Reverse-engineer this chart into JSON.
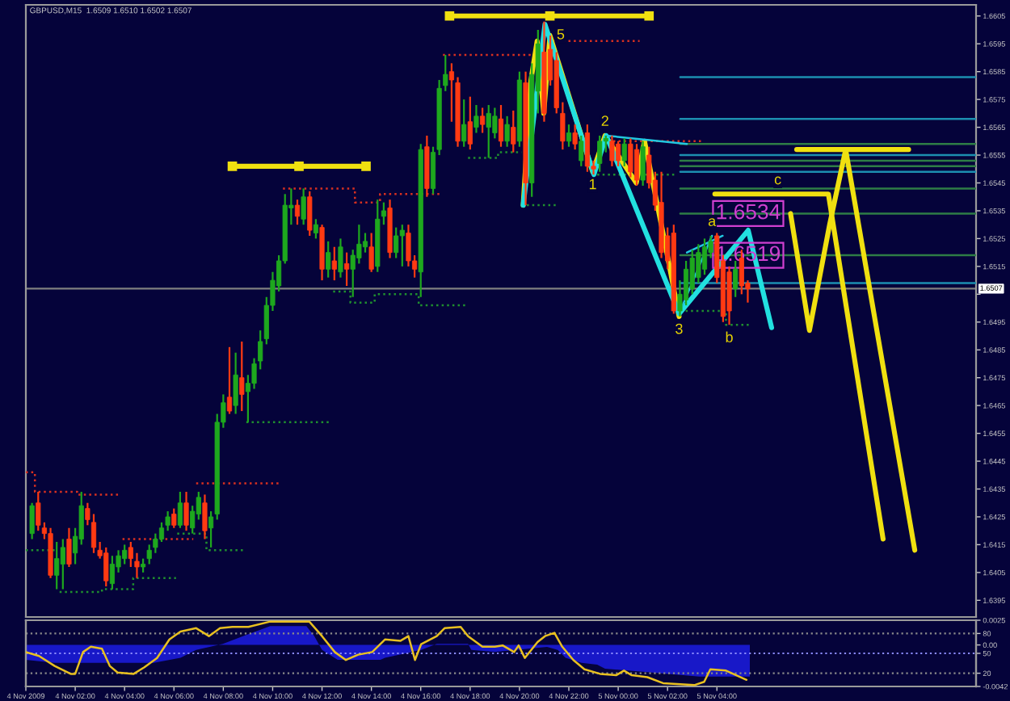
{
  "chart_data": [
    {
      "type": "candlestick",
      "title": "GBPUSD,M15  1.6509 1.6510 1.6502 1.6507",
      "x": [
        "2009-11-04T00:15",
        "2009-11-04T00:30",
        "2009-11-04T00:45",
        "2009-11-04T01:00",
        "2009-11-04T01:15",
        "2009-11-04T01:30",
        "2009-11-04T01:45",
        "2009-11-04T02:00",
        "2009-11-04T02:15",
        "2009-11-04T02:30",
        "2009-11-04T02:45",
        "2009-11-04T03:00",
        "2009-11-04T03:15",
        "2009-11-04T03:30",
        "2009-11-04T03:45",
        "2009-11-04T04:00",
        "2009-11-04T04:15",
        "2009-11-04T04:30",
        "2009-11-04T04:45",
        "2009-11-04T05:00",
        "2009-11-04T05:15",
        "2009-11-04T05:30",
        "2009-11-04T05:45",
        "2009-11-04T06:00",
        "2009-11-04T06:15",
        "2009-11-04T06:30",
        "2009-11-04T06:45",
        "2009-11-04T07:00",
        "2009-11-04T07:15",
        "2009-11-04T07:30",
        "2009-11-04T07:45",
        "2009-11-04T08:00",
        "2009-11-04T08:15",
        "2009-11-04T08:30",
        "2009-11-04T08:45",
        "2009-11-04T09:00",
        "2009-11-04T09:15",
        "2009-11-04T09:30",
        "2009-11-04T09:45",
        "2009-11-04T10:00",
        "2009-11-04T10:15",
        "2009-11-04T10:30",
        "2009-11-04T10:45",
        "2009-11-04T11:00",
        "2009-11-04T11:15",
        "2009-11-04T11:30",
        "2009-11-04T11:45",
        "2009-11-04T12:00",
        "2009-11-04T12:15",
        "2009-11-04T12:30",
        "2009-11-04T12:45",
        "2009-11-04T13:00",
        "2009-11-04T13:15",
        "2009-11-04T13:30",
        "2009-11-04T13:45",
        "2009-11-04T14:00",
        "2009-11-04T14:15",
        "2009-11-04T14:30",
        "2009-11-04T14:45",
        "2009-11-04T15:00",
        "2009-11-04T15:15",
        "2009-11-04T15:30",
        "2009-11-04T15:45",
        "2009-11-04T16:00",
        "2009-11-04T16:15",
        "2009-11-04T16:30",
        "2009-11-04T16:45",
        "2009-11-04T17:00",
        "2009-11-04T17:15",
        "2009-11-04T17:30",
        "2009-11-04T17:45",
        "2009-11-04T18:00",
        "2009-11-04T18:15",
        "2009-11-04T18:30",
        "2009-11-04T18:45",
        "2009-11-04T19:00",
        "2009-11-04T19:15",
        "2009-11-04T19:30",
        "2009-11-04T19:45",
        "2009-11-04T20:00",
        "2009-11-04T20:15",
        "2009-11-04T20:30",
        "2009-11-04T20:45",
        "2009-11-04T21:00",
        "2009-11-04T21:15",
        "2009-11-04T21:30",
        "2009-11-04T21:45",
        "2009-11-04T22:00",
        "2009-11-04T22:15",
        "2009-11-04T22:30",
        "2009-11-04T22:45",
        "2009-11-04T23:00",
        "2009-11-04T23:15",
        "2009-11-04T23:30",
        "2009-11-04T23:45",
        "2009-11-05T00:00",
        "2009-11-05T00:15",
        "2009-11-05T00:30",
        "2009-11-05T00:45",
        "2009-11-05T01:00",
        "2009-11-05T01:15",
        "2009-11-05T01:30",
        "2009-11-05T01:45",
        "2009-11-05T02:00",
        "2009-11-05T02:15",
        "2009-11-05T02:30",
        "2009-11-05T02:45",
        "2009-11-05T03:00",
        "2009-11-05T03:15",
        "2009-11-05T03:30",
        "2009-11-05T03:45",
        "2009-11-05T04:00",
        "2009-11-05T04:15",
        "2009-11-05T04:30",
        "2009-11-05T04:45",
        "2009-11-05T05:00",
        "2009-11-05T05:15"
      ],
      "ohlc": [
        [
          1.6419,
          1.643,
          1.6417,
          1.6429
        ],
        [
          1.643,
          1.6434,
          1.642,
          1.6422
        ],
        [
          1.6421,
          1.6423,
          1.6417,
          1.6419
        ],
        [
          1.6419,
          1.6421,
          1.6403,
          1.6404
        ],
        [
          1.6404,
          1.6416,
          1.6399,
          1.641
        ],
        [
          1.6408,
          1.6417,
          1.6399,
          1.6414
        ],
        [
          1.6417,
          1.6421,
          1.6407,
          1.6408
        ],
        [
          1.6412,
          1.6421,
          1.6408,
          1.6418
        ],
        [
          1.6417,
          1.6434,
          1.6415,
          1.6429
        ],
        [
          1.6428,
          1.643,
          1.6422,
          1.6424
        ],
        [
          1.6423,
          1.6426,
          1.6412,
          1.6414
        ],
        [
          1.6413,
          1.6416,
          1.641,
          1.6411
        ],
        [
          1.6412,
          1.6414,
          1.64,
          1.6402
        ],
        [
          1.6401,
          1.6411,
          1.6399,
          1.6408
        ],
        [
          1.6407,
          1.6413,
          1.6405,
          1.6411
        ],
        [
          1.641,
          1.6415,
          1.6408,
          1.6413
        ],
        [
          1.6414,
          1.6416,
          1.6407,
          1.641
        ],
        [
          1.6409,
          1.6412,
          1.6403,
          1.6407
        ],
        [
          1.6407,
          1.641,
          1.6405,
          1.6408
        ],
        [
          1.641,
          1.6415,
          1.6408,
          1.6413
        ],
        [
          1.6414,
          1.6419,
          1.6412,
          1.6417
        ],
        [
          1.6417,
          1.6423,
          1.6416,
          1.6421
        ],
        [
          1.6422,
          1.6427,
          1.642,
          1.6425
        ],
        [
          1.6426,
          1.6428,
          1.6421,
          1.6422
        ],
        [
          1.6422,
          1.6434,
          1.6421,
          1.643
        ],
        [
          1.643,
          1.6434,
          1.642,
          1.6422
        ],
        [
          1.6421,
          1.6429,
          1.6419,
          1.6427
        ],
        [
          1.6426,
          1.6434,
          1.6424,
          1.6432
        ],
        [
          1.643,
          1.6433,
          1.6417,
          1.642
        ],
        [
          1.6421,
          1.6427,
          1.6414,
          1.6425
        ],
        [
          1.6426,
          1.6462,
          1.6424,
          1.6459
        ],
        [
          1.6459,
          1.6469,
          1.6457,
          1.6466
        ],
        [
          1.6468,
          1.6486,
          1.6462,
          1.6463
        ],
        [
          1.6465,
          1.6484,
          1.6462,
          1.6476
        ],
        [
          1.6475,
          1.6488,
          1.6463,
          1.6469
        ],
        [
          1.647,
          1.6476,
          1.6459,
          1.6473
        ],
        [
          1.6473,
          1.6482,
          1.6471,
          1.648
        ],
        [
          1.6481,
          1.6492,
          1.6478,
          1.6488
        ],
        [
          1.6489,
          1.6504,
          1.6487,
          1.6501
        ],
        [
          1.6501,
          1.6513,
          1.6499,
          1.651
        ],
        [
          1.6508,
          1.6519,
          1.6506,
          1.6517
        ],
        [
          1.6517,
          1.6541,
          1.6516,
          1.6537
        ],
        [
          1.6536,
          1.6543,
          1.653,
          1.6537
        ],
        [
          1.6537,
          1.6539,
          1.653,
          1.6533
        ],
        [
          1.6532,
          1.6543,
          1.653,
          1.654
        ],
        [
          1.654,
          1.6542,
          1.6526,
          1.6528
        ],
        [
          1.6527,
          1.6532,
          1.6525,
          1.653
        ],
        [
          1.6529,
          1.653,
          1.651,
          1.6514
        ],
        [
          1.6514,
          1.6524,
          1.6511,
          1.652
        ],
        [
          1.6517,
          1.6522,
          1.651,
          1.6514
        ],
        [
          1.6513,
          1.6525,
          1.6511,
          1.6522
        ],
        [
          1.6516,
          1.652,
          1.6508,
          1.6514
        ],
        [
          1.6514,
          1.6521,
          1.6504,
          1.6519
        ],
        [
          1.6518,
          1.653,
          1.6516,
          1.6523
        ],
        [
          1.6522,
          1.6527,
          1.652,
          1.6524
        ],
        [
          1.6522,
          1.6527,
          1.6513,
          1.6514
        ],
        [
          1.6515,
          1.6539,
          1.6513,
          1.6532
        ],
        [
          1.6533,
          1.6538,
          1.653,
          1.6535
        ],
        [
          1.6536,
          1.6539,
          1.6518,
          1.652
        ],
        [
          1.652,
          1.6529,
          1.6518,
          1.6526
        ],
        [
          1.6526,
          1.653,
          1.6515,
          1.6528
        ],
        [
          1.6527,
          1.653,
          1.6515,
          1.6517
        ],
        [
          1.6517,
          1.6519,
          1.6511,
          1.6514
        ],
        [
          1.6513,
          1.6559,
          1.6504,
          1.6557
        ],
        [
          1.6558,
          1.6562,
          1.654,
          1.6543
        ],
        [
          1.6543,
          1.6558,
          1.6541,
          1.6556
        ],
        [
          1.6557,
          1.6582,
          1.6555,
          1.6579
        ],
        [
          1.658,
          1.6591,
          1.6578,
          1.6584
        ],
        [
          1.6585,
          1.6588,
          1.6567,
          1.6582
        ],
        [
          1.6581,
          1.6583,
          1.6558,
          1.656
        ],
        [
          1.656,
          1.6575,
          1.6558,
          1.6566
        ],
        [
          1.6567,
          1.6576,
          1.6557,
          1.6559
        ],
        [
          1.6565,
          1.6573,
          1.6563,
          1.6569
        ],
        [
          1.6569,
          1.6572,
          1.6563,
          1.6566
        ],
        [
          1.6565,
          1.6573,
          1.6554,
          1.657
        ],
        [
          1.6563,
          1.6572,
          1.6561,
          1.6569
        ],
        [
          1.6568,
          1.6573,
          1.6558,
          1.656
        ],
        [
          1.656,
          1.6569,
          1.6558,
          1.6566
        ],
        [
          1.6565,
          1.6571,
          1.6556,
          1.6559
        ],
        [
          1.656,
          1.6585,
          1.6558,
          1.6582
        ],
        [
          1.6581,
          1.6585,
          1.6537,
          1.6545
        ],
        [
          1.6545,
          1.6588,
          1.654,
          1.6584
        ],
        [
          1.6578,
          1.66,
          1.657,
          1.6595
        ],
        [
          1.6592,
          1.6603,
          1.6567,
          1.657
        ],
        [
          1.6593,
          1.6598,
          1.658,
          1.6582
        ],
        [
          1.6589,
          1.6592,
          1.657,
          1.6572
        ],
        [
          1.657,
          1.6574,
          1.6557,
          1.656
        ],
        [
          1.656,
          1.6566,
          1.6558,
          1.6563
        ],
        [
          1.6563,
          1.6566,
          1.6557,
          1.6559
        ],
        [
          1.6553,
          1.6562,
          1.6551,
          1.656
        ],
        [
          1.6563,
          1.6566,
          1.6549,
          1.6551
        ],
        [
          1.6551,
          1.6553,
          1.6548,
          1.655
        ],
        [
          1.6552,
          1.6562,
          1.6549,
          1.656
        ],
        [
          1.656,
          1.6562,
          1.6556,
          1.6561
        ],
        [
          1.656,
          1.6562,
          1.6551,
          1.6553
        ],
        [
          1.6559,
          1.656,
          1.6551,
          1.6553
        ],
        [
          1.6553,
          1.6561,
          1.6551,
          1.6559
        ],
        [
          1.6559,
          1.6561,
          1.6547,
          1.6549
        ],
        [
          1.6557,
          1.6559,
          1.6544,
          1.6546
        ],
        [
          1.6546,
          1.656,
          1.6544,
          1.6558
        ],
        [
          1.6555,
          1.6558,
          1.6543,
          1.6545
        ],
        [
          1.6546,
          1.6549,
          1.6535,
          1.6537
        ],
        [
          1.6538,
          1.6549,
          1.6518,
          1.652
        ],
        [
          1.6526,
          1.6529,
          1.6514,
          1.6517
        ],
        [
          1.6527,
          1.653,
          1.6498,
          1.6499
        ],
        [
          1.6499,
          1.651,
          1.6497,
          1.6505
        ],
        [
          1.6503,
          1.6517,
          1.6501,
          1.6514
        ],
        [
          1.6507,
          1.6521,
          1.6505,
          1.6518
        ],
        [
          1.6511,
          1.6523,
          1.6509,
          1.652
        ],
        [
          1.6514,
          1.6525,
          1.6512,
          1.6522
        ],
        [
          1.652,
          1.6526,
          1.6518,
          1.6524
        ],
        [
          1.6526,
          1.6527,
          1.6509,
          1.6511
        ],
        [
          1.6517,
          1.6519,
          1.6495,
          1.6497
        ],
        [
          1.6513,
          1.6515,
          1.6494,
          1.6499
        ],
        [
          1.6507,
          1.6517,
          1.6504,
          1.6514
        ],
        [
          1.6518,
          1.6521,
          1.6505,
          1.6508
        ],
        [
          1.6509,
          1.651,
          1.6502,
          1.6507
        ]
      ],
      "colors": [
        "#1ea81e",
        "#ff3a12",
        "#ff3a12",
        "#ff3a12",
        "#1ea81e",
        "#1ea81e",
        "#ff3a12",
        "#1ea81e",
        "#1ea81e",
        "#ff3a12",
        "#ff3a12",
        "#ff3a12",
        "#ff3a12",
        "#1ea81e",
        "#1ea81e",
        "#1ea81e",
        "#ff3a12",
        "#ff3a12",
        "#1ea81e",
        "#1ea81e",
        "#1ea81e",
        "#1ea81e",
        "#1ea81e",
        "#ff3a12",
        "#1ea81e",
        "#ff3a12",
        "#1ea81e",
        "#1ea81e",
        "#ff3a12",
        "#1ea81e",
        "#1ea81e",
        "#1ea81e",
        "#ff3a12",
        "#1ea81e",
        "#ff3a12",
        "#1ea81e",
        "#1ea81e",
        "#1ea81e",
        "#1ea81e",
        "#1ea81e",
        "#1ea81e",
        "#1ea81e",
        "#1ea81e",
        "#ff3a12",
        "#1ea81e",
        "#ff3a12",
        "#1ea81e",
        "#ff3a12",
        "#1ea81e",
        "#ff3a12",
        "#1ea81e",
        "#ff3a12",
        "#1ea81e",
        "#1ea81e",
        "#1ea81e",
        "#ff3a12",
        "#1ea81e",
        "#1ea81e",
        "#ff3a12",
        "#1ea81e",
        "#1ea81e",
        "#ff3a12",
        "#ff3a12",
        "#1ea81e",
        "#ff3a12",
        "#1ea81e",
        "#1ea81e",
        "#1ea81e",
        "#ff3a12",
        "#ff3a12",
        "#1ea81e",
        "#ff3a12",
        "#1ea81e",
        "#ff3a12",
        "#1ea81e",
        "#1ea81e",
        "#ff3a12",
        "#1ea81e",
        "#ff3a12",
        "#1ea81e",
        "#ff3a12",
        "#1ea81e",
        "#1ea81e",
        "#ff3a12",
        "#ff3a12",
        "#ff3a12",
        "#ff3a12",
        "#1ea81e",
        "#ff3a12",
        "#1ea81e",
        "#ff3a12",
        "#ff3a12",
        "#1ea81e",
        "#1ea81e",
        "#ff3a12",
        "#ff3a12",
        "#1ea81e",
        "#ff3a12",
        "#ff3a12",
        "#1ea81e",
        "#ff3a12",
        "#ff3a12",
        "#ff3a12",
        "#ff3a12",
        "#ff3a12",
        "#1ea81e",
        "#1ea81e",
        "#1ea81e",
        "#1ea81e",
        "#1ea81e",
        "#1ea81e",
        "#ff3a12",
        "#ff3a12",
        "#ff3a12",
        "#1ea81e",
        "#ff3a12",
        "#ff3a12"
      ],
      "series": [
        {
          "type": "line",
          "x": [
            "2009-11-04T00:00",
            "2009-11-04T00:22",
            "2009-11-04T00:22",
            "2009-11-04T02:05",
            "2009-11-04T02:05",
            "2009-11-04T03:47"
          ],
          "values": [
            1.6441,
            1.6441,
            1.6434,
            1.6434,
            1.6433,
            1.6433
          ],
          "color": "#d83020",
          "line_style": "dotted"
        },
        {
          "type": "line",
          "x": [
            "2009-11-04T03:55",
            "2009-11-04T06:47"
          ],
          "values": [
            1.6417,
            1.6417
          ],
          "color": "#d83020",
          "line_style": "dotted"
        },
        {
          "type": "line",
          "x": [
            "2009-11-04T06:54",
            "2009-11-04T10:17"
          ],
          "values": [
            1.6437,
            1.6437
          ],
          "color": "#d83020",
          "line_style": "dotted"
        },
        {
          "type": "line",
          "x": [
            "2009-11-04T10:25",
            "2009-11-04T13:20",
            "2009-11-04T13:20",
            "2009-11-04T14:21",
            "2009-11-04T14:21",
            "2009-11-04T16:47"
          ],
          "values": [
            1.6543,
            1.6543,
            1.6538,
            1.6538,
            1.6541,
            1.6541
          ],
          "color": "#d83020",
          "line_style": "dotted"
        },
        {
          "type": "line",
          "x": [
            "2009-11-04T16:54",
            "2009-11-04T20:28"
          ],
          "values": [
            1.6591,
            1.6591
          ],
          "color": "#d83020",
          "line_style": "dotted"
        },
        {
          "type": "line",
          "x": [
            "2009-11-04T21:07",
            "2009-11-05T00:52"
          ],
          "values": [
            1.6596,
            1.6596
          ],
          "color": "#d83020",
          "line_style": "dotted"
        },
        {
          "type": "line",
          "x": [
            "2009-11-04T23:35",
            "2009-11-05T03:29"
          ],
          "values": [
            1.656,
            1.656
          ],
          "color": "#d83020",
          "line_style": "dotted"
        },
        {
          "type": "line",
          "x": [
            "2009-11-04T00:00",
            "2009-11-04T01:10"
          ],
          "values": [
            1.6413,
            1.6413
          ],
          "color": "#1f8f2f",
          "line_style": "dotted"
        },
        {
          "type": "line",
          "x": [
            "2009-11-04T01:22",
            "2009-11-04T03:05",
            "2009-11-04T03:05",
            "2009-11-04T04:21",
            "2009-11-04T04:21",
            "2009-11-04T06:05"
          ],
          "values": [
            1.6398,
            1.6398,
            1.6399,
            1.6399,
            1.6403,
            1.6403
          ],
          "color": "#1f8f2f",
          "line_style": "dotted"
        },
        {
          "type": "line",
          "x": [
            "2009-11-04T06:08",
            "2009-11-04T07:19",
            "2009-11-04T07:19",
            "2009-11-04T08:49"
          ],
          "values": [
            1.6419,
            1.6419,
            1.6413,
            1.6413
          ],
          "color": "#1f8f2f",
          "line_style": "dotted"
        },
        {
          "type": "line",
          "x": [
            "2009-11-04T08:56",
            "2009-11-04T12:19"
          ],
          "values": [
            1.6459,
            1.6459
          ],
          "color": "#1f8f2f",
          "line_style": "dotted"
        },
        {
          "type": "line",
          "x": [
            "2009-11-04T12:27",
            "2009-11-04T13:09",
            "2009-11-04T13:09",
            "2009-11-04T14:08",
            "2009-11-04T14:08",
            "2009-11-04T15:55",
            "2009-11-04T15:55",
            "2009-11-04T17:52"
          ],
          "values": [
            1.6506,
            1.6506,
            1.6502,
            1.6502,
            1.6505,
            1.6505,
            1.6501,
            1.6501
          ],
          "color": "#1f8f2f",
          "line_style": "dotted"
        },
        {
          "type": "line",
          "x": [
            "2009-11-04T17:55",
            "2009-11-04T19:08",
            "2009-11-04T19:08",
            "2009-11-04T20:05"
          ],
          "values": [
            1.6554,
            1.6554,
            1.6556,
            1.6556
          ],
          "color": "#1f8f2f",
          "line_style": "dotted"
        },
        {
          "type": "line",
          "x": [
            "2009-11-04T20:18",
            "2009-11-04T21:33"
          ],
          "values": [
            1.6537,
            1.6537
          ],
          "color": "#1f8f2f",
          "line_style": "dotted"
        },
        {
          "type": "line",
          "x": [
            "2009-11-04T23:09",
            "2009-11-05T02:20"
          ],
          "values": [
            1.6548,
            1.6548
          ],
          "color": "#1f8f2f",
          "line_style": "dotted"
        },
        {
          "type": "line",
          "x": [
            "2009-11-05T02:31",
            "2009-11-05T04:22",
            "2009-11-05T04:22",
            "2009-11-05T05:20"
          ],
          "values": [
            1.6499,
            1.6499,
            1.6494,
            1.6494
          ],
          "color": "#1f8f2f",
          "line_style": "dotted"
        },
        {
          "type": "line",
          "x": [
            "2009-11-05T02:31",
            "2009-11-05T14:30"
          ],
          "values": [
            1.6583,
            1.6583
          ],
          "color": "#1c8fb0"
        },
        {
          "type": "line",
          "x": [
            "2009-11-05T02:31",
            "2009-11-05T14:30"
          ],
          "values": [
            1.6568,
            1.6568
          ],
          "color": "#1c8fb0"
        },
        {
          "type": "line",
          "x": [
            "2009-11-05T02:31",
            "2009-11-05T14:30"
          ],
          "values": [
            1.6559,
            1.6559
          ],
          "color": "#2e7d46"
        },
        {
          "type": "line",
          "x": [
            "2009-11-05T02:31",
            "2009-11-05T14:30"
          ],
          "values": [
            1.6555,
            1.6555
          ],
          "color": "#1c8fb0"
        },
        {
          "type": "line",
          "x": [
            "2009-11-05T02:31",
            "2009-11-05T14:30"
          ],
          "values": [
            1.6553,
            1.6553
          ],
          "color": "#2e7d46"
        },
        {
          "type": "line",
          "x": [
            "2009-11-05T02:31",
            "2009-11-05T14:30"
          ],
          "values": [
            1.6551,
            1.6551
          ],
          "color": "#2e7d46"
        },
        {
          "type": "line",
          "x": [
            "2009-11-05T02:31",
            "2009-11-05T14:30"
          ],
          "values": [
            1.6549,
            1.6549
          ],
          "color": "#1c8fb0"
        },
        {
          "type": "line",
          "x": [
            "2009-11-05T02:31",
            "2009-11-05T14:30"
          ],
          "values": [
            1.6543,
            1.6543
          ],
          "color": "#2e7d46"
        },
        {
          "type": "line",
          "x": [
            "2009-11-05T02:31",
            "2009-11-05T14:30"
          ],
          "values": [
            1.6534,
            1.6534
          ],
          "color": "#2e7d46"
        },
        {
          "type": "line",
          "x": [
            "2009-11-05T02:31",
            "2009-11-05T14:30"
          ],
          "values": [
            1.6519,
            1.6519
          ],
          "color": "#2e7d46"
        },
        {
          "type": "line",
          "x": [
            "2009-11-05T02:31",
            "2009-11-05T14:30"
          ],
          "values": [
            1.6509,
            1.6509
          ],
          "color": "#1c8fb0"
        },
        {
          "type": "line",
          "x": [
            "2009-11-04T08:22",
            "2009-11-04T11:04",
            "2009-11-04T13:47"
          ],
          "values": [
            1.6551,
            1.6551,
            1.6551
          ],
          "color": "#f0e010",
          "marker": "square"
        },
        {
          "type": "line",
          "x": [
            "2009-11-04T17:10",
            "2009-11-04T21:14",
            "2009-11-05T01:15"
          ],
          "values": [
            1.6605,
            1.6605,
            1.6605
          ],
          "color": "#f0e010",
          "marker": "square"
        },
        {
          "type": "line",
          "x": [
            "2009-11-05T07:14",
            "2009-11-05T09:30",
            "2009-11-05T11:46"
          ],
          "values": [
            1.6557,
            1.6557,
            1.6557
          ],
          "color": "#f0e010"
        },
        {
          "type": "line",
          "x": [
            "2009-11-05T03:55",
            "2009-11-05T08:31",
            "2009-11-05T10:44"
          ],
          "values": [
            1.6541,
            1.6541,
            1.6417
          ],
          "color": "#f0e010"
        },
        {
          "type": "line",
          "x": [
            "2009-11-05T06:59",
            "2009-11-05T07:45",
            "2009-11-05T08:34",
            "2009-11-05T09:13",
            "2009-11-05T12:01"
          ],
          "values": [
            1.6534,
            1.6492,
            1.653,
            1.6557,
            1.6413
          ],
          "color": "#f0e010"
        },
        {
          "type": "line",
          "x": [
            "2009-11-04T20:09",
            "2009-11-04T20:28",
            "2009-11-04T20:43",
            "2009-11-04T20:59",
            "2009-11-04T21:14",
            "2009-11-04T22:58",
            "2009-11-04T23:28",
            "2009-11-05T00:44",
            "2009-11-05T01:04",
            "2009-11-05T01:53",
            "2009-11-05T02:28"
          ],
          "values": [
            1.6537,
            1.6582,
            1.6596,
            1.657,
            1.6598,
            1.6549,
            1.6562,
            1.6545,
            1.656,
            1.6524,
            1.6497
          ],
          "color": "#f0e010"
        },
        {
          "type": "line",
          "x": [
            "2009-11-04T20:09",
            "2009-11-04T21:02",
            "2009-11-04T23:01",
            "2009-11-04T23:31",
            "2009-11-05T02:28",
            "2009-11-05T05:16",
            "2009-11-05T06:13"
          ],
          "values": [
            1.6537,
            1.6602,
            1.6548,
            1.6562,
            1.6498,
            1.6528,
            1.6493
          ],
          "color": "#22e0e0"
        },
        {
          "type": "line",
          "x": [
            "2009-11-04T23:31",
            "2009-11-05T02:47"
          ],
          "values": [
            1.6562,
            1.6559
          ],
          "color": "#22c8e0"
        },
        {
          "type": "line",
          "x": [
            "2009-11-05T02:28",
            "2009-11-05T03:48"
          ],
          "values": [
            1.6498,
            1.6526
          ],
          "color": "#22c8e0"
        },
        {
          "type": "line",
          "x": [
            "2009-11-05T02:47",
            "2009-11-05T04:14"
          ],
          "values": [
            1.652,
            1.6526
          ],
          "color": "#22c8e0"
        },
        {
          "type": "scatter",
          "x": [
            "2009-11-05T05:16",
            "2009-11-05T05:16"
          ],
          "values": [
            1.6534,
            1.6519
          ],
          "value_labels": [
            "1.6534",
            "1.6519"
          ],
          "color": "#d040d0"
        }
      ],
      "annotations": [
        {
          "text": "5",
          "x": "2009-11-04T21:14",
          "y": 1.6598
        },
        {
          "text": "1",
          "x": "2009-11-04T22:58",
          "y": 1.6549
        },
        {
          "text": "2",
          "x": "2009-11-04T23:28",
          "y": 1.6562
        },
        {
          "text": "3",
          "x": "2009-11-05T02:28",
          "y": 1.6497
        },
        {
          "text": "a",
          "x": "2009-11-05T03:48",
          "y": 1.6526
        },
        {
          "text": "b",
          "x": "2009-11-05T04:30",
          "y": 1.6494
        },
        {
          "text": "c",
          "x": "2009-11-05T06:28",
          "y": 1.6541
        }
      ],
      "ref_lines": [
        {
          "axis": "y",
          "value": 1.6507,
          "label": "1.6507",
          "color": "#7f7f7f"
        }
      ],
      "xlim": [
        "2009-11-04T00:00",
        "2009-11-05T14:30"
      ],
      "ylim": [
        1.6389,
        1.6609
      ],
      "yticks": [
        1.6395,
        1.6405,
        1.6415,
        1.6425,
        1.6435,
        1.6445,
        1.6455,
        1.6465,
        1.6475,
        1.6485,
        1.6495,
        {
          "value": 1.6505,
          "label": null
        },
        1.6515,
        1.6525,
        1.6535,
        1.6545,
        1.6555,
        1.6565,
        1.6575,
        1.6585,
        1.6595,
        1.6605
      ],
      "tick_labels": "y"
    },
    {
      "type": "line",
      "series": [
        {
          "type": "area",
          "axis": "y2",
          "color": "#1818c8",
          "x": [
            "2009-11-04T00:00",
            "2009-11-04T01:10",
            "2009-11-04T03:43",
            "2009-11-04T05:11",
            "2009-11-04T06:16",
            "2009-11-04T06:54",
            "2009-11-04T07:59",
            "2009-11-04T08:49",
            "2009-11-04T09:54",
            "2009-11-04T11:22",
            "2009-11-04T11:41",
            "2009-11-04T12:00",
            "2009-11-04T12:38",
            "2009-11-04T14:22",
            "2009-11-04T14:33",
            "2009-11-04T16:01",
            "2009-11-04T16:39",
            "2009-11-04T17:55",
            "2009-11-04T18:03",
            "2009-11-04T19:00",
            "2009-11-04T21:07",
            "2009-11-04T21:33",
            "2009-11-04T21:52",
            "2009-11-04T22:31",
            "2009-11-04T23:09",
            "2009-11-04T23:28",
            "2009-11-05T01:23",
            "2009-11-05T03:17",
            "2009-11-05T05:20"
          ],
          "values": [
            -0.0015,
            -0.0018,
            -0.0018,
            -0.0018,
            -0.0013,
            -0.0005,
            0.0001,
            0.0009,
            0.0019,
            0.0019,
            0.0009,
            -0.0005,
            -0.0015,
            -0.0015,
            -0.0013,
            -0.0005,
            0.0001,
            0.0001,
            -0.0005,
            -0.0007,
            -0.0002,
            -0.0005,
            -0.0013,
            -0.0018,
            -0.002,
            -0.0024,
            -0.0028,
            -0.0032,
            -0.0032
          ]
        },
        {
          "type": "line",
          "color": "#e8c020",
          "x": [
            "2009-11-04T00:00",
            "2009-11-04T00:32",
            "2009-11-04T01:10",
            "2009-11-04T01:49",
            "2009-11-04T02:00",
            "2009-11-04T02:19",
            "2009-11-04T02:38",
            "2009-11-04T03:05",
            "2009-11-04T03:24",
            "2009-11-04T03:43",
            "2009-11-04T04:22",
            "2009-11-04T04:48",
            "2009-11-04T05:19",
            "2009-11-04T05:49",
            "2009-11-04T06:16",
            "2009-11-04T06:54",
            "2009-11-04T07:25",
            "2009-11-04T07:52",
            "2009-11-04T08:22",
            "2009-11-04T09:01",
            "2009-11-04T09:54",
            "2009-11-04T11:29",
            "2009-11-04T12:00",
            "2009-11-04T12:31",
            "2009-11-04T12:58",
            "2009-11-04T13:28",
            "2009-11-04T14:02",
            "2009-11-04T14:33",
            "2009-11-04T15:11",
            "2009-11-04T15:30",
            "2009-11-04T15:46",
            "2009-11-04T16:01",
            "2009-11-04T16:39",
            "2009-11-04T16:58",
            "2009-11-04T17:37",
            "2009-11-04T17:55",
            "2009-11-04T18:30",
            "2009-11-04T19:00",
            "2009-11-04T19:19",
            "2009-11-04T19:47",
            "2009-11-04T19:58",
            "2009-11-04T20:13",
            "2009-11-04T20:44",
            "2009-11-04T21:02",
            "2009-11-04T21:25",
            "2009-11-04T21:44",
            "2009-11-04T22:11",
            "2009-11-04T22:38",
            "2009-11-04T23:16",
            "2009-11-04T23:55",
            "2009-11-05T00:14",
            "2009-11-05T00:33",
            "2009-11-05T01:11",
            "2009-11-05T01:49",
            "2009-11-05T03:05",
            "2009-11-05T03:29",
            "2009-11-05T03:44",
            "2009-11-05T04:22",
            "2009-11-05T05:12"
          ],
          "values": [
            52,
            46,
            31,
            19,
            19,
            52,
            60,
            57,
            31,
            21,
            19,
            29,
            43,
            71,
            83,
            88,
            76,
            88,
            90,
            90,
            98,
            98,
            76,
            52,
            40,
            48,
            52,
            71,
            69,
            76,
            40,
            64,
            76,
            88,
            90,
            76,
            60,
            60,
            62,
            52,
            62,
            43,
            67,
            76,
            81,
            60,
            40,
            26,
            19,
            17,
            24,
            17,
            14,
            5,
            2,
            7,
            26,
            24,
            10
          ]
        }
      ],
      "ref_lines": [
        {
          "axis": "y",
          "value": 80,
          "color": "#8a8a8a",
          "line_style": "dotted"
        },
        {
          "axis": "y",
          "value": 50,
          "color": "#8a8aff",
          "line_style": "dotted"
        },
        {
          "axis": "y",
          "value": 20,
          "color": "#8a8a8a",
          "line_style": "dotted"
        }
      ],
      "xlim": [
        "2009-11-04T00:00",
        "2009-11-05T14:30"
      ],
      "ylim": [
        0,
        100
      ],
      "yticks": [
        20,
        50,
        80
      ],
      "y2lim": [
        -0.0042,
        0.0025
      ],
      "y2ticks": [
        -0.0042,
        {
          "value": 0,
          "label": "0.00"
        },
        0.0025
      ],
      "xticks": [
        {
          "value": "2009-11-04T00:00",
          "label": "4 Nov 2009"
        },
        {
          "value": "2009-11-04T02:00",
          "label": "4 Nov 02:00"
        },
        {
          "value": "2009-11-04T04:00",
          "label": "4 Nov 04:00"
        },
        {
          "value": "2009-11-04T06:00",
          "label": "4 Nov 06:00"
        },
        {
          "value": "2009-11-04T08:00",
          "label": "4 Nov 08:00"
        },
        {
          "value": "2009-11-04T10:00",
          "label": "4 Nov 10:00"
        },
        {
          "value": "2009-11-04T12:00",
          "label": "4 Nov 12:00"
        },
        {
          "value": "2009-11-04T14:00",
          "label": "4 Nov 14:00"
        },
        {
          "value": "2009-11-04T16:00",
          "label": "4 Nov 16:00"
        },
        {
          "value": "2009-11-04T18:00",
          "label": "4 Nov 18:00"
        },
        {
          "value": "2009-11-04T20:00",
          "label": "4 Nov 20:00"
        },
        {
          "value": "2009-11-04T22:00",
          "label": "4 Nov 22:00"
        },
        {
          "value": "2009-11-05T00:00",
          "label": "5 Nov 00:00"
        },
        {
          "value": "2009-11-05T02:00",
          "label": "5 Nov 02:00"
        },
        {
          "value": "2009-11-05T04:00",
          "label": "5 Nov 04:00"
        }
      ]
    }
  ]
}
